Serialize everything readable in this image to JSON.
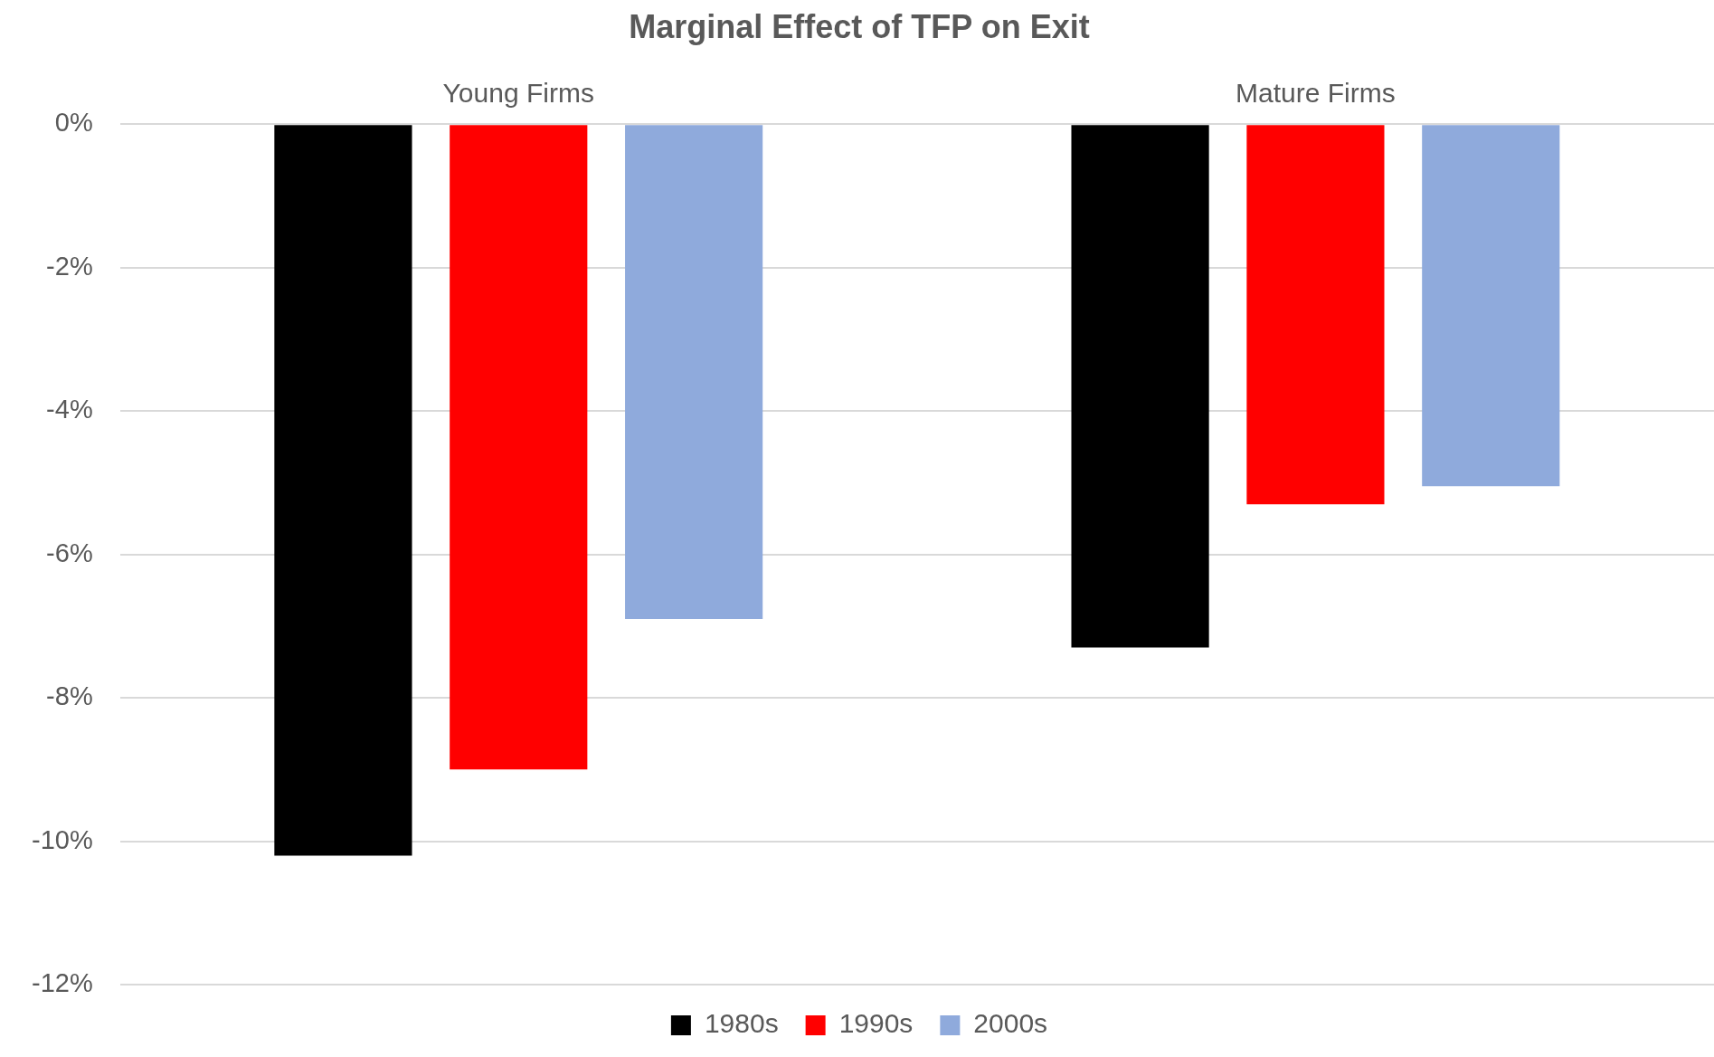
{
  "chart_data": {
    "type": "bar",
    "title": "Marginal Effect of TFP on Exit",
    "categories": [
      "Young Firms",
      "Mature Firms"
    ],
    "series": [
      {
        "name": "1980s",
        "color": "#000000",
        "values": [
          -10.2,
          -7.3
        ]
      },
      {
        "name": "1990s",
        "color": "#ff0000",
        "values": [
          -9.0,
          -5.3
        ]
      },
      {
        "name": "2000s",
        "color": "#8faadc",
        "values": [
          -6.9,
          -5.05
        ]
      }
    ],
    "ylim": [
      -12,
      0
    ],
    "yticks": [
      {
        "value": 0,
        "label": "0%"
      },
      {
        "value": -2,
        "label": "-2%"
      },
      {
        "value": -4,
        "label": "-4%"
      },
      {
        "value": -6,
        "label": "-6%"
      },
      {
        "value": -8,
        "label": "-8%"
      },
      {
        "value": -10,
        "label": "-10%"
      },
      {
        "value": -12,
        "label": "-12%"
      }
    ],
    "grid": "y",
    "legend": "bottom"
  }
}
